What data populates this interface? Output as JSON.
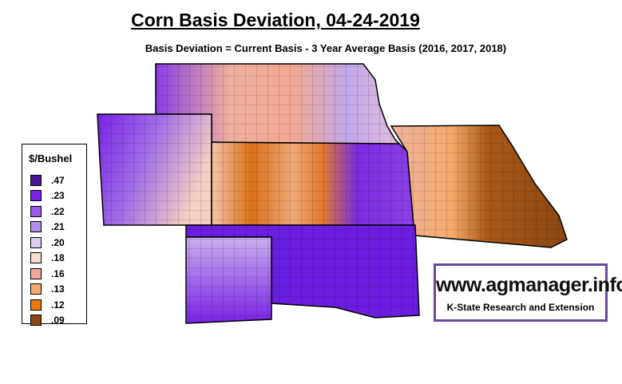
{
  "header": {
    "title": "Corn Basis Deviation, 04-24-2019",
    "subtitle": "Basis Deviation = Current Basis - 3 Year Average Basis (2016, 2017, 2018)"
  },
  "legend": {
    "title": "$/Bushel",
    "items": [
      {
        "label": ".47",
        "color": "#4b1490"
      },
      {
        "label": ".23",
        "color": "#7a22e6"
      },
      {
        "label": ".22",
        "color": "#9a5ae8"
      },
      {
        "label": ".21",
        "color": "#b290ea"
      },
      {
        "label": ".20",
        "color": "#dccdf2"
      },
      {
        "label": ".18",
        "color": "#f6ddd2"
      },
      {
        "label": ".16",
        "color": "#f0a898"
      },
      {
        "label": ".13",
        "color": "#f5aa6c"
      },
      {
        "label": ".12",
        "color": "#e87a10"
      },
      {
        "label": ".09",
        "color": "#8a4814"
      }
    ]
  },
  "watermark": {
    "url": "www.agmanager.info",
    "org": "K-State Research and Extension"
  }
}
